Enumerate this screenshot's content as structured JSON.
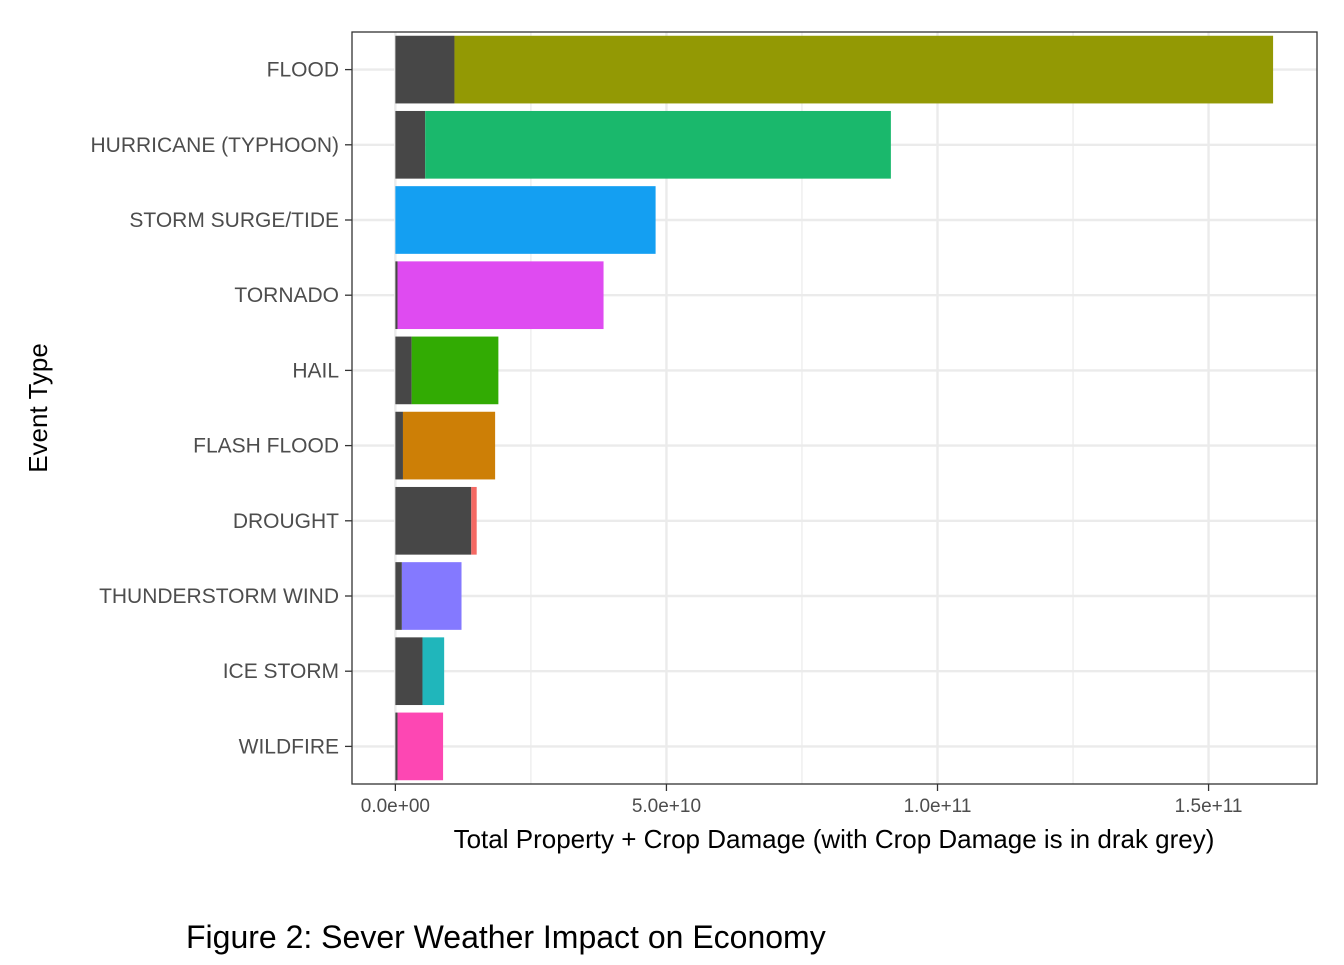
{
  "chart_data": {
    "type": "bar",
    "orientation": "horizontal",
    "stacked": true,
    "title": "",
    "xlabel": "Total Property + Crop Damage  (with Crop Damage is in drak grey)",
    "ylabel": "Event Type",
    "caption": "Figure 2: Sever Weather Impact on Economy",
    "xlim": [
      -8000000000,
      170000000000
    ],
    "xticks": [
      0,
      50000000000,
      100000000000,
      150000000000
    ],
    "xtick_labels": [
      "0.0e+00",
      "5.0e+10",
      "1.0e+11",
      "1.5e+11"
    ],
    "xminor": [
      25000000000,
      75000000000,
      125000000000
    ],
    "grid": true,
    "legend": "none",
    "crop_color": "#474747",
    "categories": [
      "FLOOD",
      "HURRICANE (TYPHOON)",
      "STORM SURGE/TIDE",
      "TORNADO",
      "HAIL",
      "FLASH FLOOD",
      "DROUGHT",
      "THUNDERSTORM WIND",
      "ICE STORM",
      "WILDFIRE"
    ],
    "series": [
      {
        "values": [
          10900000000,
          5500000000,
          0,
          400000000,
          3000000000,
          1400000000,
          14000000000,
          1200000000,
          5000000000,
          400000000
        ],
        "color": "#474747"
      },
      {
        "values": [
          151000000000,
          85900000000,
          48000000000,
          38000000000,
          16000000000,
          17000000000,
          1000000000,
          11000000000,
          4000000000,
          8400000000
        ],
        "colors": [
          "#939904",
          "#1ab86c",
          "#149ff2",
          "#df4bf1",
          "#32ab03",
          "#cd7f06",
          "#f46963",
          "#8479ff",
          "#20b6bb",
          "#fd47b3"
        ]
      }
    ]
  }
}
